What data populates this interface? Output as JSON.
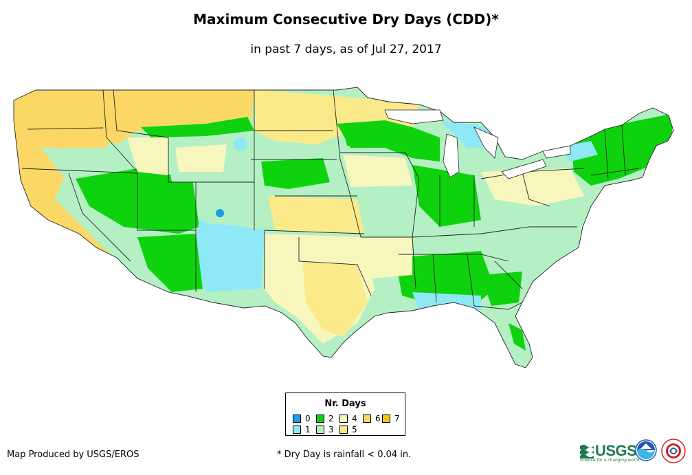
{
  "header": {
    "title": "Maximum Consecutive Dry Days (CDD)*",
    "subtitle": "in past 7 days, as of Jul 27, 2017"
  },
  "legend": {
    "title": "Nr. Days",
    "items": [
      {
        "label": "0",
        "color": "#1c9be6"
      },
      {
        "label": "1",
        "color": "#8fe8f5"
      },
      {
        "label": "2",
        "color": "#0fd20f"
      },
      {
        "label": "3",
        "color": "#b4f0c4"
      },
      {
        "label": "4",
        "color": "#f7f7bd"
      },
      {
        "label": "5",
        "color": "#fbea8a"
      },
      {
        "label": "6",
        "color": "#fbd766"
      },
      {
        "label": "7",
        "color": "#f6c21a"
      }
    ]
  },
  "footer": {
    "credit": "Map Produced by USGS/EROS",
    "footnote": "* Dry Day is rainfall < 0.04 in.",
    "usgs_logo_text": "USGS",
    "usgs_tagline": "science for a changing world"
  }
}
